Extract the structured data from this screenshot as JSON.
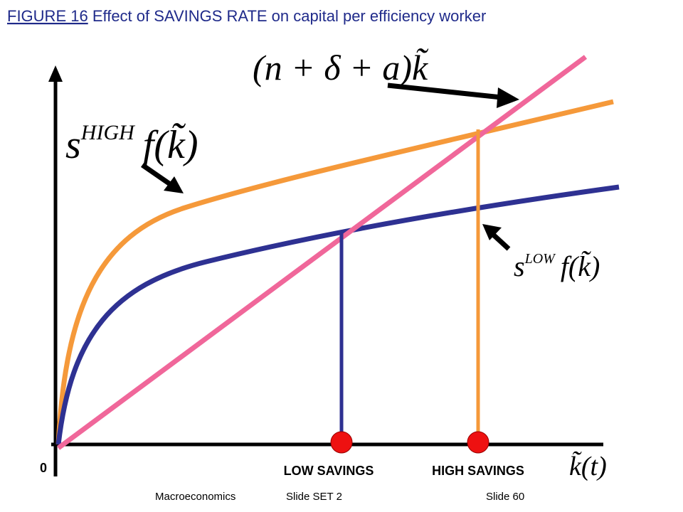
{
  "header": {
    "figure": "FIGURE 16",
    "title": " Effect of SAVINGS RATE on capital per efficiency worker"
  },
  "labels": {
    "line": "(n + δ + a)k̃",
    "high": {
      "base": "s",
      "superscript": "HIGH",
      "function": "f(k̃)"
    },
    "low": {
      "base": "s",
      "superscript": "LOW",
      "function": "f(k̃)"
    },
    "origin": "0",
    "low_savings": "LOW SAVINGS",
    "high_savings": "HIGH SAVINGS",
    "x_axis": "k̃(t)"
  },
  "footer": {
    "course": "Macroeconomics",
    "set": "Slide SET 2",
    "slide": "Slide 60"
  }
}
